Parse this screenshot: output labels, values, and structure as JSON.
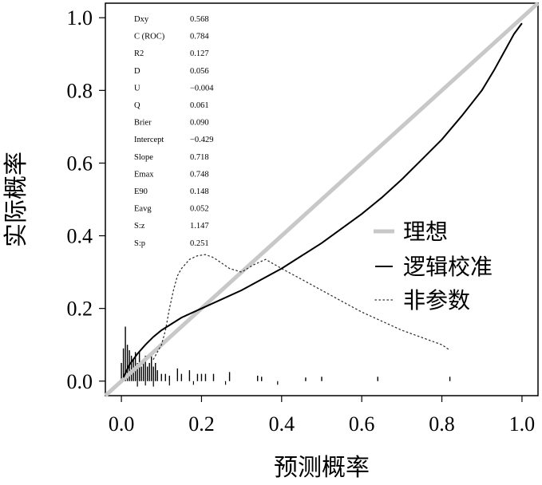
{
  "chart_data": {
    "type": "line",
    "xlabel": "预测概率",
    "ylabel": "实际概率",
    "xlim": [
      -0.04,
      1.04
    ],
    "ylim": [
      -0.04,
      1.04
    ],
    "x_ticks": [
      "0.0",
      "0.2",
      "0.4",
      "0.6",
      "0.8",
      "1.0"
    ],
    "y_ticks": [
      "0.0",
      "0.2",
      "0.4",
      "0.6",
      "0.8",
      "1.0"
    ],
    "grid": false,
    "legend_position": "right-middle",
    "legend": [
      {
        "label": "理想",
        "style": "thick-gray-line"
      },
      {
        "label": "逻辑校准",
        "style": "solid-black-line"
      },
      {
        "label": "非参数",
        "style": "dotted-line"
      }
    ],
    "colors": {
      "ideal": "#c8c8c8",
      "logistic": "#000000",
      "nonparametric": "#333333"
    },
    "stats": [
      {
        "label": "Dxy",
        "value": "0.568"
      },
      {
        "label": "C (ROC)",
        "value": "0.784"
      },
      {
        "label": "R2",
        "value": "0.127"
      },
      {
        "label": "D",
        "value": "0.056"
      },
      {
        "label": "U",
        "value": "−0.004"
      },
      {
        "label": "Q",
        "value": "0.061"
      },
      {
        "label": "Brier",
        "value": "0.090"
      },
      {
        "label": "Intercept",
        "value": "−0.429"
      },
      {
        "label": "Slope",
        "value": "0.718"
      },
      {
        "label": "Emax",
        "value": "0.748"
      },
      {
        "label": "E90",
        "value": "0.148"
      },
      {
        "label": "Eavg",
        "value": "0.052"
      },
      {
        "label": "S:z",
        "value": "1.147"
      },
      {
        "label": "S:p",
        "value": "0.251"
      }
    ],
    "series": [
      {
        "name": "理想",
        "x": [
          -0.04,
          1.04
        ],
        "y": [
          -0.04,
          1.04
        ]
      },
      {
        "name": "逻辑校准",
        "x": [
          0.005,
          0.02,
          0.04,
          0.06,
          0.08,
          0.1,
          0.15,
          0.2,
          0.25,
          0.3,
          0.35,
          0.4,
          0.45,
          0.5,
          0.55,
          0.6,
          0.65,
          0.7,
          0.75,
          0.8,
          0.85,
          0.9,
          0.93,
          0.95,
          0.97,
          0.98,
          0.99,
          1.0
        ],
        "y": [
          0.01,
          0.045,
          0.075,
          0.1,
          0.122,
          0.14,
          0.175,
          0.2,
          0.225,
          0.25,
          0.28,
          0.31,
          0.345,
          0.38,
          0.42,
          0.46,
          0.505,
          0.555,
          0.61,
          0.665,
          0.73,
          0.8,
          0.855,
          0.895,
          0.935,
          0.955,
          0.97,
          0.985
        ]
      },
      {
        "name": "非参数",
        "x": [
          0.08,
          0.09,
          0.1,
          0.11,
          0.12,
          0.13,
          0.14,
          0.15,
          0.17,
          0.19,
          0.21,
          0.23,
          0.25,
          0.27,
          0.3,
          0.33,
          0.36,
          0.4,
          0.45,
          0.5,
          0.55,
          0.6,
          0.65,
          0.7,
          0.75,
          0.8,
          0.82
        ],
        "y": [
          0.06,
          0.08,
          0.1,
          0.14,
          0.2,
          0.25,
          0.29,
          0.31,
          0.335,
          0.345,
          0.348,
          0.34,
          0.325,
          0.31,
          0.3,
          0.32,
          0.335,
          0.31,
          0.28,
          0.25,
          0.22,
          0.19,
          0.165,
          0.14,
          0.12,
          0.1,
          0.085
        ]
      }
    ],
    "rug_top": [
      0.0,
      0.005,
      0.01,
      0.015,
      0.02,
      0.025,
      0.03,
      0.035,
      0.04,
      0.045,
      0.05,
      0.055,
      0.06,
      0.065,
      0.07,
      0.075,
      0.08,
      0.085,
      0.09,
      0.1,
      0.11,
      0.12,
      0.14,
      0.15,
      0.17,
      0.19,
      0.2,
      0.21,
      0.23,
      0.27,
      0.34,
      0.35,
      0.46,
      0.5,
      0.64,
      0.82
    ],
    "rug_top_heights": [
      0.05,
      0.09,
      0.15,
      0.1,
      0.085,
      0.07,
      0.06,
      0.08,
      0.05,
      0.08,
      0.04,
      0.06,
      0.07,
      0.04,
      0.05,
      0.07,
      0.04,
      0.05,
      0.03,
      0.02,
      0.02,
      0.015,
      0.035,
      0.02,
      0.03,
      0.02,
      0.02,
      0.02,
      0.02,
      0.025,
      0.015,
      0.012,
      0.01,
      0.012,
      0.012,
      0.012
    ],
    "rug_bottom": [
      0.04,
      0.06,
      0.08,
      0.12,
      0.18,
      0.26,
      0.39
    ],
    "rug_bottom_heights": [
      0.015,
      0.012,
      0.015,
      0.012,
      0.01,
      0.01,
      0.01
    ]
  }
}
